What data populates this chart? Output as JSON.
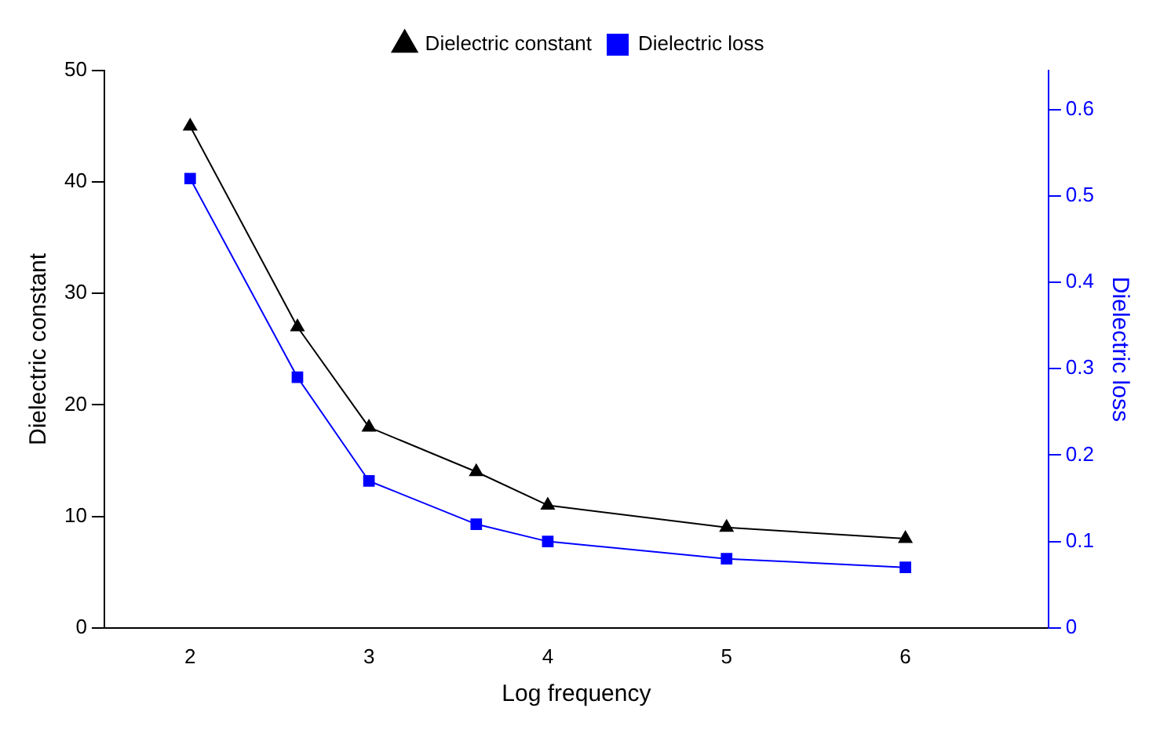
{
  "chart_data": {
    "type": "line",
    "xlabel": "Log frequency",
    "ylabel": "Dielectric constant",
    "y2label": "Dielectric loss",
    "x": [
      2,
      2.6,
      3,
      3.6,
      4,
      5,
      6
    ],
    "series": [
      {
        "name": "Dielectric constant",
        "color": "#000000",
        "marker": "triangle",
        "values": [
          45,
          27,
          18,
          14,
          11,
          9,
          8
        ]
      },
      {
        "name": "Dielectric loss",
        "color": "#0000ff",
        "marker": "square",
        "axis": "y2",
        "values": [
          0.52,
          0.29,
          0.17,
          0.12,
          0.1,
          0.08,
          0.07
        ]
      }
    ],
    "xlim": [
      1.52,
      6.8
    ],
    "xticks": [
      2,
      3,
      4,
      5,
      6
    ],
    "ylim": [
      0,
      50
    ],
    "yticks": [
      0,
      10,
      20,
      30,
      40,
      50
    ],
    "y2lim": [
      0,
      0.645
    ],
    "y2ticks": [
      0,
      0.1,
      0.2,
      0.3,
      0.4,
      0.5,
      0.6
    ],
    "grid": false,
    "legend": "top",
    "line_style": "solid"
  }
}
